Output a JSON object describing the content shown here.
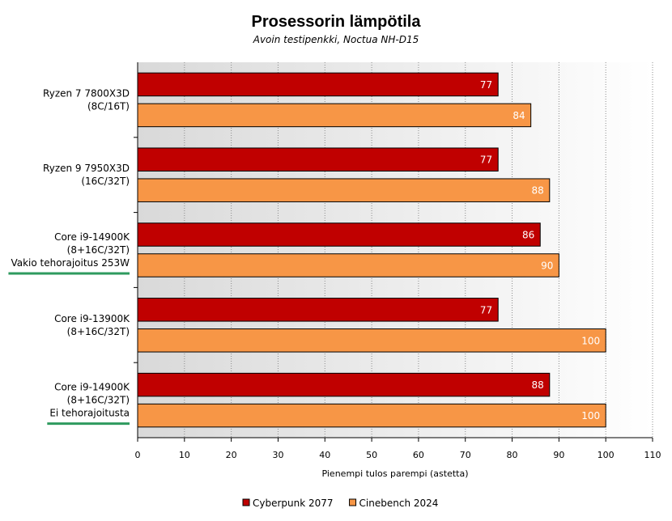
{
  "chart_data": {
    "type": "bar",
    "orientation": "horizontal",
    "title": "Prosessorin lämpötila",
    "subtitle": "Avoin testipenkki, Noctua NH-D15",
    "xlabel": "Pienempi tulos parempi (astetta)",
    "xlim": [
      0,
      110
    ],
    "xticks": [
      0,
      10,
      20,
      30,
      40,
      50,
      60,
      70,
      80,
      90,
      100,
      110
    ],
    "grid": true,
    "legend_position": "bottom",
    "categories": [
      {
        "lines": [
          "Ryzen 7 7800X3D",
          "(8C/16T)"
        ],
        "highlight": false
      },
      {
        "lines": [
          "Ryzen 9 7950X3D",
          "(16C/32T)"
        ],
        "highlight": false
      },
      {
        "lines": [
          "Core i9-14900K",
          "(8+16C/32T)",
          "Vakio tehorajoitus 253W"
        ],
        "highlight": true
      },
      {
        "lines": [
          "Core i9-13900K",
          "(8+16C/32T)"
        ],
        "highlight": false
      },
      {
        "lines": [
          "Core i9-14900K",
          "(8+16C/32T)",
          "Ei tehorajoitusta"
        ],
        "highlight": true
      }
    ],
    "series": [
      {
        "name": "Cyberpunk 2077",
        "color": "#c00000",
        "values": [
          77,
          77,
          86,
          77,
          88
        ]
      },
      {
        "name": "Cinebench 2024",
        "color": "#f79646",
        "values": [
          84,
          88,
          90,
          100,
          100
        ]
      }
    ],
    "highlight_color": "#2e9a5e"
  }
}
